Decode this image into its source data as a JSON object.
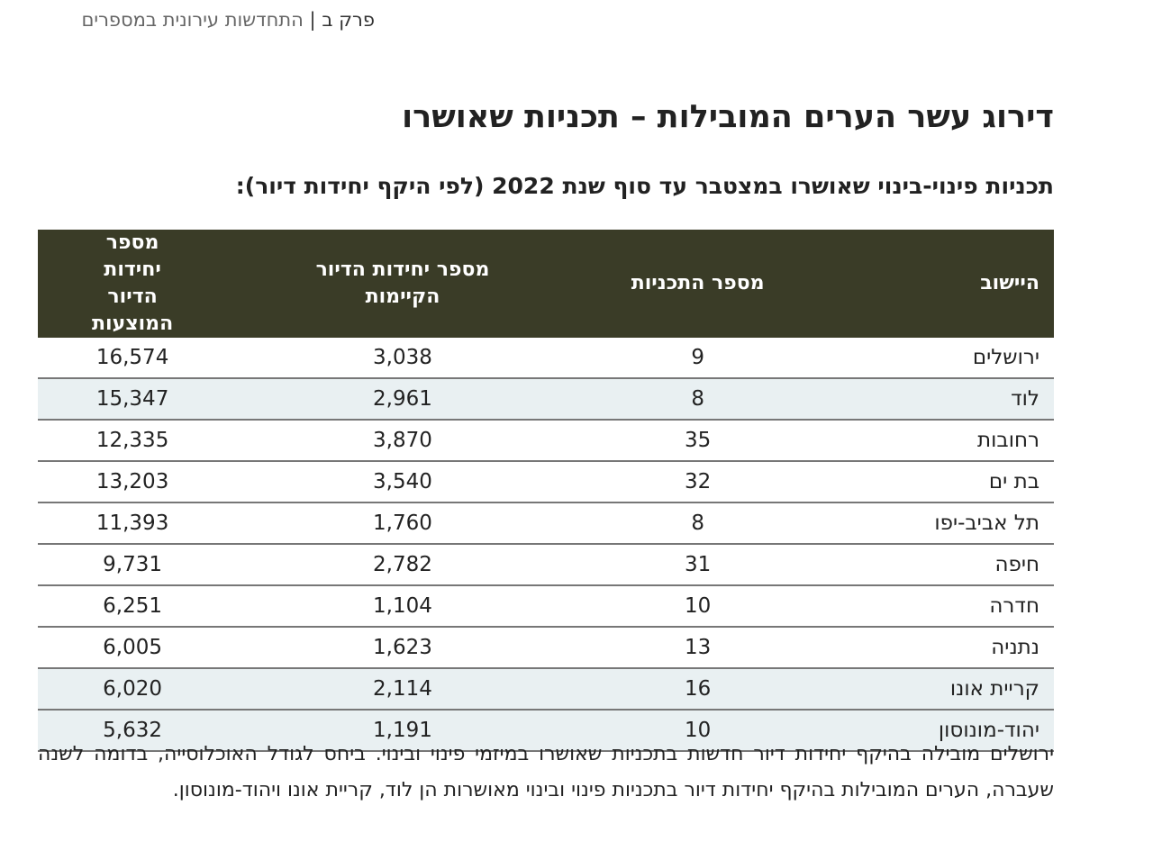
{
  "header": {
    "chapter": "פרק ב",
    "separator": "|",
    "section": "התחדשות עירונית במספרים"
  },
  "title": "דירוג עשר הערים המובילות – תכניות שאושרו",
  "subtitle": "תכניות פינוי-בינוי שאושרו במצטבר עד סוף שנת 2022 (לפי היקף יחידות דיור):",
  "table": {
    "columns": [
      "היישוב",
      "מספר התכניות",
      "מספר יחידות הדיור הקיימות",
      "מספר יחידות הדיור המוצעות"
    ],
    "rows": [
      [
        "ירושלים",
        "9",
        "3,038",
        "16,574"
      ],
      [
        "לוד",
        "8",
        "2,961",
        "15,347"
      ],
      [
        "רחובות",
        "35",
        "3,870",
        "12,335"
      ],
      [
        "בת ים",
        "32",
        "3,540",
        "13,203"
      ],
      [
        "תל אביב-יפו",
        "8",
        "1,760",
        "11,393"
      ],
      [
        "חיפה",
        "31",
        "2,782",
        "9,731"
      ],
      [
        "חדרה",
        "10",
        "1,104",
        "6,251"
      ],
      [
        "נתניה",
        "13",
        "1,623",
        "6,005"
      ],
      [
        "קריית אונו",
        "16",
        "2,114",
        "6,020"
      ],
      [
        "יהוד-מונוסון",
        "10",
        "1,191",
        "5,632"
      ]
    ]
  },
  "paragraph": "ירושלים מובילה בהיקף יחידות דיור חדשות בתכניות שאושרו במיזמי פינוי ובינוי. ביחס לגודל האוכלוסייה, בדומה לשנה שעברה, הערים המובילות בהיקף יחידות דיור בתכניות פינוי ובינוי מאושרות הן לוד, קריית אונו ויהוד-מונוסון."
}
